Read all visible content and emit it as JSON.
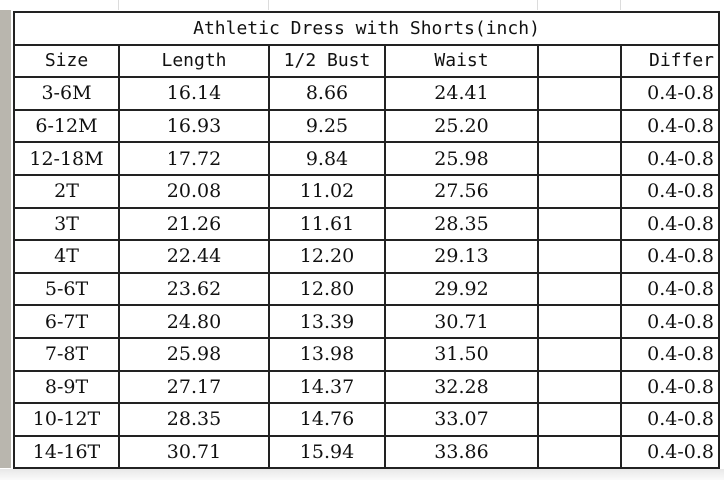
{
  "title": "Athletic Dress with Shorts(inch)",
  "headers": [
    "Size",
    "Length",
    "1/2 Bust",
    "Waist",
    "",
    "Differ"
  ],
  "rows": [
    [
      "3-6M",
      "16.14",
      "8.66",
      "24.41",
      "",
      "0.4-0.8"
    ],
    [
      "6-12M",
      "16.93",
      "9.25",
      "25.20",
      "",
      "0.4-0.8"
    ],
    [
      "12-18M",
      "17.72",
      "9.84",
      "25.98",
      "",
      "0.4-0.8"
    ],
    [
      "2T",
      "20.08",
      "11.02",
      "27.56",
      "",
      "0.4-0.8"
    ],
    [
      "3T",
      "21.26",
      "11.61",
      "28.35",
      "",
      "0.4-0.8"
    ],
    [
      "4T",
      "22.44",
      "12.20",
      "29.13",
      "",
      "0.4-0.8"
    ],
    [
      "5-6T",
      "23.62",
      "12.80",
      "29.92",
      "",
      "0.4-0.8"
    ],
    [
      "6-7T",
      "24.80",
      "13.39",
      "30.71",
      "",
      "0.4-0.8"
    ],
    [
      "7-8T",
      "25.98",
      "13.98",
      "31.50",
      "",
      "0.4-0.8"
    ],
    [
      "8-9T",
      "27.17",
      "14.37",
      "32.28",
      "",
      "0.4-0.8"
    ],
    [
      "10-12T",
      "28.35",
      "14.76",
      "33.07",
      "",
      "0.4-0.8"
    ],
    [
      "14-16T",
      "30.71",
      "15.94",
      "33.86",
      "",
      "0.4-0.8"
    ]
  ]
}
